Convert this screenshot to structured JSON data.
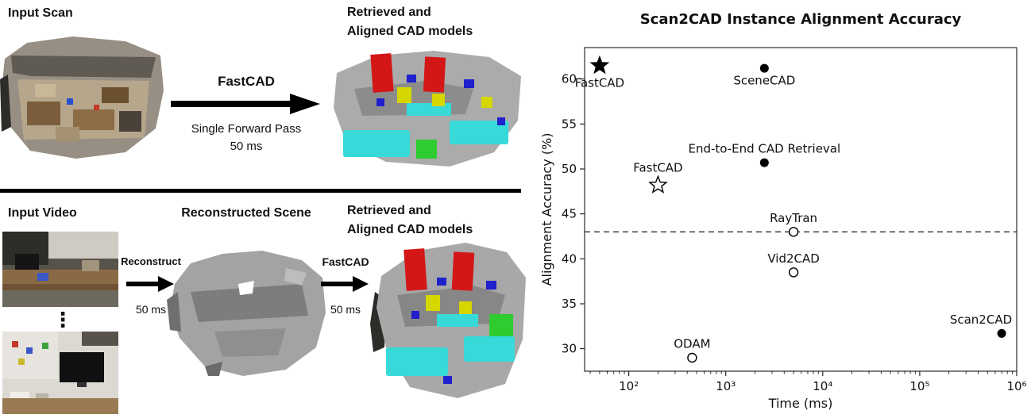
{
  "pipeline": {
    "scan": {
      "input_label": "Input Scan",
      "method": "FastCAD",
      "method_sub": "Single Forward Pass",
      "method_time": "50 ms",
      "output_line1": "Retrieved and",
      "output_line2": "Aligned CAD models"
    },
    "video": {
      "input_label": "Input Video",
      "dots": "⋮",
      "reconstruct_label": "Reconstruct",
      "reconstruct_time": "50 ms",
      "reconstructed_label": "Reconstructed Scene",
      "method": "FastCAD",
      "method_time": "50 ms",
      "output_line1": "Retrieved and",
      "output_line2": "Aligned CAD models"
    }
  },
  "chart_data": {
    "type": "scatter",
    "title": "Scan2CAD Instance Alignment Accuracy",
    "xlabel": "Time (ms)",
    "ylabel": "Alignment Accuracy (%)",
    "x_scale": "log",
    "xlim": [
      35,
      1000000
    ],
    "ylim": [
      27.5,
      63.5
    ],
    "x_ticks": [
      {
        "v": 100,
        "label": "10²"
      },
      {
        "v": 1000,
        "label": "10³"
      },
      {
        "v": 10000,
        "label": "10⁴"
      },
      {
        "v": 100000,
        "label": "10⁵"
      },
      {
        "v": 1000000,
        "label": "10⁶"
      }
    ],
    "y_ticks": [
      30,
      35,
      40,
      45,
      50,
      55,
      60
    ],
    "grid": false,
    "legend": "none",
    "dashed_line_y": 43,
    "points": [
      {
        "label": "FastCAD",
        "x": 50,
        "y": 61.5,
        "marker": "star-filled",
        "label_pos": "below"
      },
      {
        "label": "SceneCAD",
        "x": 2500,
        "y": 61.2,
        "marker": "circle-filled",
        "label_pos": "below"
      },
      {
        "label": "End-to-End CAD Retrieval",
        "x": 2500,
        "y": 50.7,
        "marker": "circle-filled",
        "label_pos": "above"
      },
      {
        "label": "FastCAD",
        "x": 200,
        "y": 48.2,
        "marker": "star-open",
        "label_pos": "above"
      },
      {
        "label": "RayTran",
        "x": 5000,
        "y": 43.0,
        "marker": "circle-open",
        "label_pos": "above"
      },
      {
        "label": "Vid2CAD",
        "x": 5000,
        "y": 38.5,
        "marker": "circle-open",
        "label_pos": "above"
      },
      {
        "label": "ODAM",
        "x": 450,
        "y": 29.0,
        "marker": "circle-open",
        "label_pos": "above"
      },
      {
        "label": "Scan2CAD",
        "x": 700000,
        "y": 31.7,
        "marker": "circle-filled",
        "label_pos": "above"
      }
    ]
  }
}
